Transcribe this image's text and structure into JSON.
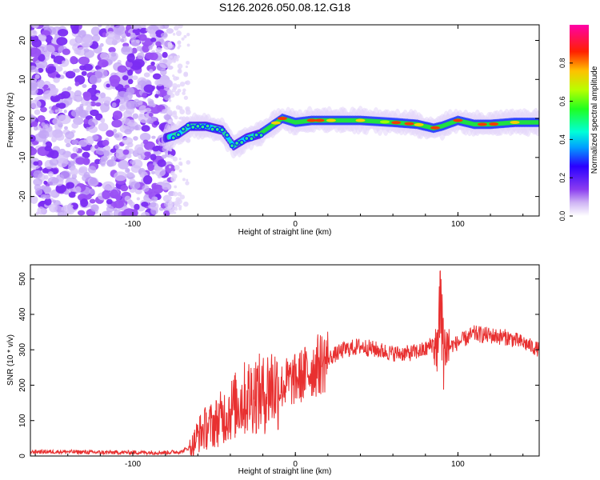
{
  "title": "S126.2026.050.08.12.G18",
  "colors": {
    "snr_line": "#e83030",
    "frame": "#000000",
    "background": "#ffffff"
  },
  "chart_data": [
    {
      "type": "heatmap",
      "title": "S126.2026.050.08.12.G18",
      "xlabel": "Height of straight line (km)",
      "ylabel": "Frequency (Hz)",
      "xlim": [
        -163,
        150
      ],
      "ylim": [
        -25,
        24
      ],
      "xticks": [
        -100,
        0,
        100
      ],
      "yticks": [
        -20,
        -10,
        0,
        10,
        20
      ],
      "noise_region_x": [
        -163,
        -78
      ],
      "ridge": {
        "description_points_x": [
          -80,
          -72,
          -65,
          -55,
          -45,
          -38,
          -30,
          -22,
          -15,
          -8,
          0,
          10,
          20,
          40,
          60,
          75,
          80,
          85,
          90,
          100,
          110,
          120,
          135,
          150
        ],
        "description_points_freq": [
          -5,
          -4,
          -2,
          -2,
          -3,
          -7,
          -5,
          -4,
          -2,
          0,
          -1,
          -0.5,
          -0.5,
          -0.5,
          -1,
          -1.5,
          -2,
          -2.5,
          -2,
          -0.5,
          -1.5,
          -1.5,
          -1,
          -1
        ]
      },
      "colorbar": {
        "label": "Normalized spectral amplitude",
        "range": [
          0,
          1
        ],
        "ticks": [
          0.0,
          0.2,
          0.4,
          0.6,
          0.8
        ]
      }
    },
    {
      "type": "line",
      "xlabel": "Height of straight line (km)",
      "ylabel": "SNR (10 * v/v)",
      "xlim": [
        -163,
        150
      ],
      "ylim": [
        0,
        540
      ],
      "xticks": [
        -100,
        0,
        100
      ],
      "yticks": [
        0,
        100,
        200,
        300,
        400,
        500
      ],
      "series": [
        {
          "name": "SNR",
          "x": [
            -163,
            -140,
            -120,
            -100,
            -80,
            -70,
            -63,
            -60,
            -55,
            -50,
            -45,
            -40,
            -35,
            -30,
            -25,
            -20,
            -15,
            -10,
            -5,
            0,
            10,
            20,
            30,
            40,
            50,
            60,
            70,
            80,
            85,
            88,
            90,
            92,
            95,
            100,
            110,
            120,
            130,
            140,
            150
          ],
          "values": [
            12,
            12,
            10,
            10,
            10,
            12,
            30,
            60,
            80,
            90,
            110,
            130,
            150,
            165,
            180,
            170,
            200,
            190,
            210,
            215,
            245,
            275,
            300,
            310,
            300,
            290,
            290,
            300,
            320,
            300,
            330,
            310,
            310,
            320,
            345,
            340,
            335,
            320,
            300
          ]
        }
      ]
    }
  ]
}
